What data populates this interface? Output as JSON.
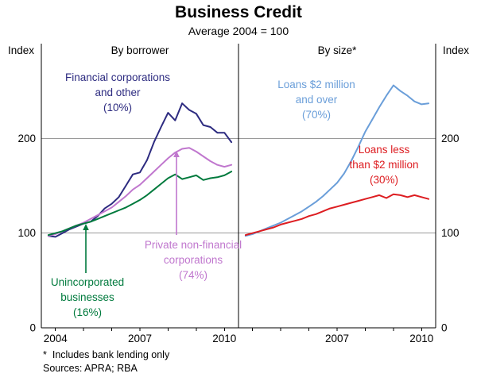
{
  "chart_data": {
    "type": "line",
    "title": "Business Credit",
    "subtitle": "Average 2004 = 100",
    "x": [
      2003.75,
      2004,
      2004.25,
      2004.5,
      2004.75,
      2005,
      2005.25,
      2005.5,
      2005.75,
      2006,
      2006.25,
      2006.5,
      2006.75,
      2007,
      2007.25,
      2007.5,
      2007.75,
      2008,
      2008.25,
      2008.5,
      2008.75,
      2009,
      2009.25,
      2009.5,
      2009.75,
      2010,
      2010.25
    ],
    "xlim": [
      2003.5,
      2010.5
    ],
    "ylim": [
      0,
      300
    ],
    "yticks": [
      0,
      100,
      200
    ],
    "gridlines": [
      100,
      200
    ],
    "ylabel": "Index",
    "panels": [
      {
        "title": "By borrower",
        "xtick_years": [
          2004,
          2007,
          2010
        ],
        "series": [
          {
            "name": "Financial corporations and other (10%)",
            "color": "#2d2b80",
            "values": [
              97,
              96,
              100,
              104,
              107,
              110,
              112,
              118,
              126,
              131,
              138,
              150,
              162,
              164,
              177,
              196,
              212,
              227,
              219,
              237,
              230,
              226,
              214,
              212,
              206,
              206,
              196
            ]
          },
          {
            "name": "Private non-financial corporations (74%)",
            "color": "#c077ce",
            "values": [
              97,
              99,
              102,
              105,
              108,
              111,
              115,
              119,
              123,
              127,
              133,
              139,
              146,
              151,
              158,
              165,
              172,
              179,
              185,
              189,
              190,
              186,
              181,
              176,
              172,
              170,
              172
            ]
          },
          {
            "name": "Unincorporated businesses (16%)",
            "color": "#007a3d",
            "values": [
              98,
              100,
              102,
              105,
              108,
              110,
              112,
              115,
              118,
              121,
              124,
              127,
              131,
              135,
              140,
              146,
              152,
              158,
              162,
              157,
              159,
              161,
              156,
              158,
              159,
              161,
              165
            ]
          }
        ]
      },
      {
        "title": "By size*",
        "xtick_years": [
          2007,
          2010
        ],
        "series": [
          {
            "name": "Loans $2 million and over (70%)",
            "color": "#6a9ed9",
            "values": [
              97,
              99,
              102,
              105,
              108,
              111,
              115,
              119,
              123,
              128,
              133,
              139,
              146,
              153,
              163,
              176,
              191,
              207,
              220,
              233,
              245,
              256,
              250,
              245,
              239,
              236,
              237
            ]
          },
          {
            "name": "Loans less than $2 million (30%)",
            "color": "#dd1d21",
            "values": [
              98,
              100,
              102,
              104,
              106,
              109,
              111,
              113,
              115,
              118,
              120,
              123,
              126,
              128,
              130,
              132,
              134,
              136,
              138,
              140,
              137,
              141,
              140,
              138,
              140,
              138,
              136
            ]
          }
        ]
      }
    ]
  },
  "axis": {
    "unit_left": "Index",
    "unit_right": "Index"
  },
  "annotations": {
    "financial": {
      "line1": "Financial corporations",
      "line2": "and other",
      "line3": "(10%)"
    },
    "private_nonfinancial": {
      "line1": "Private non-financial",
      "line2": "corporations",
      "line3": "(74%)"
    },
    "unincorporated": {
      "line1": "Unincorporated",
      "line2": "businesses",
      "line3": "(16%)"
    },
    "loans_large": {
      "line1": "Loans $2 million",
      "line2": "and over",
      "line3": "(70%)"
    },
    "loans_small": {
      "line1": "Loans less",
      "line2": "than $2 million",
      "line3": "(30%)"
    }
  },
  "footer": {
    "note_marker": "*",
    "note_text": "Includes bank lending only",
    "sources": "Sources: APRA; RBA"
  }
}
